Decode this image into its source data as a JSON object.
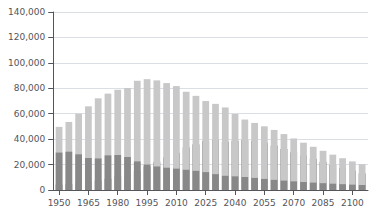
{
  "chart_data": {
    "type": "bar",
    "stacked": true,
    "grid": true,
    "x": [
      1950,
      1955,
      1960,
      1965,
      1970,
      1975,
      1980,
      1985,
      1990,
      1995,
      2000,
      2005,
      2010,
      2015,
      2020,
      2025,
      2030,
      2035,
      2040,
      2045,
      2050,
      2055,
      2060,
      2065,
      2070,
      2075,
      2080,
      2085,
      2090,
      2095,
      2100,
      2105
    ],
    "series": [
      {
        "color": "#555555",
        "values": [
          4155,
          4786,
          5350,
          6236,
          7393,
          8865,
          10647,
          12468,
          14895,
          18261,
          22005,
          25672,
          29246,
          33465,
          35883,
          38544,
          39294,
          37971,
          38729,
          39241,
          38588,
          37068,
          34948,
          32272,
          29671,
          27121,
          24610,
          22166,
          19749,
          17398,
          15138,
          13065
        ]
      },
      {
        "color": "#c8c8c8",
        "values": [
          49658,
          53516,
          60002,
          65804,
          72119,
          75807,
          78835,
          80154,
          85904,
          87165,
          86220,
          84092,
          81735,
          77282,
          74058,
          69968,
          67730,
          64942,
          59777,
          55427,
          52750,
          50080,
          47261,
          43971,
          40531,
          37211,
          34004,
          30819,
          27794,
          24994,
          22479,
          20289
        ]
      },
      {
        "color": "#888888",
        "values": [
          29428,
          30123,
          28067,
          25166,
          24823,
          27221,
          27507,
          26033,
          22486,
          20014,
          18505,
          17521,
          16803,
          15887,
          15075,
          14073,
          12457,
          11178,
          10732,
          10211,
          9515,
          8719,
          7973,
          7384,
          6802,
          6263,
          5793,
          5374,
          4953,
          4569,
          4232,
          3913
        ]
      }
    ],
    "xlim": [
      1947,
      2108
    ],
    "xticks": [
      1950,
      1965,
      1980,
      1995,
      2010,
      2025,
      2040,
      2055,
      2070,
      2085,
      2100
    ],
    "ylim": [
      0,
      140000
    ],
    "yticks": [
      0,
      {
        "value": 20000,
        "label": "20,000"
      },
      {
        "value": 40000,
        "label": "40,000"
      },
      {
        "value": 60000,
        "label": "60,000"
      },
      {
        "value": 80000,
        "label": "80,000"
      },
      {
        "value": 100000,
        "label": "100,000"
      },
      {
        "value": 120000,
        "label": "120,000"
      },
      {
        "value": 140000,
        "label": "140,000"
      }
    ]
  }
}
